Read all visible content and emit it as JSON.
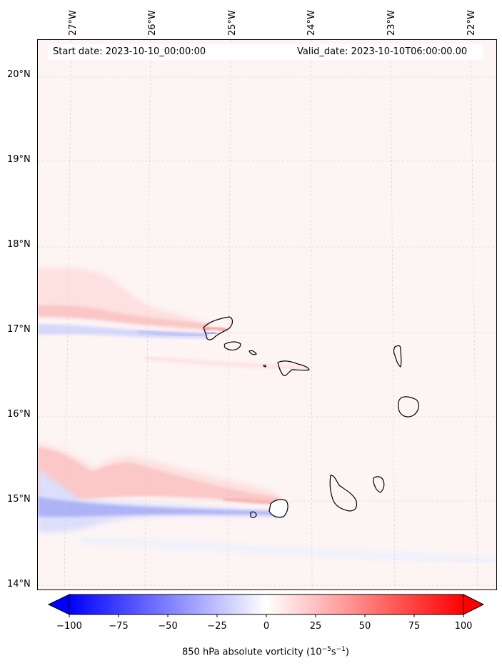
{
  "map": {
    "start_label": "Start date: 2023-10-10_00:00:00",
    "valid_label": "Valid_date: 2023-10-10T06:00:00.00",
    "lon_labels": [
      "27°W",
      "26°W",
      "25°W",
      "24°W",
      "23°W",
      "22°W"
    ],
    "lat_labels": [
      "20°N",
      "19°N",
      "18°N",
      "17°N",
      "16°N",
      "15°N",
      "14°N"
    ],
    "colorbar": {
      "title": "850 hPa absolute vorticity (10",
      "title_exp1": "−5",
      "title_mid": "s",
      "title_exp2": "−1",
      "title_end": ")",
      "ticks": [
        "−100",
        "−75",
        "−50",
        "−25",
        "0",
        "25",
        "50",
        "75",
        "100"
      ],
      "min": -100,
      "max": 100,
      "colors": [
        "#0000ff",
        "#ffffff",
        "#ff0000"
      ]
    }
  }
}
